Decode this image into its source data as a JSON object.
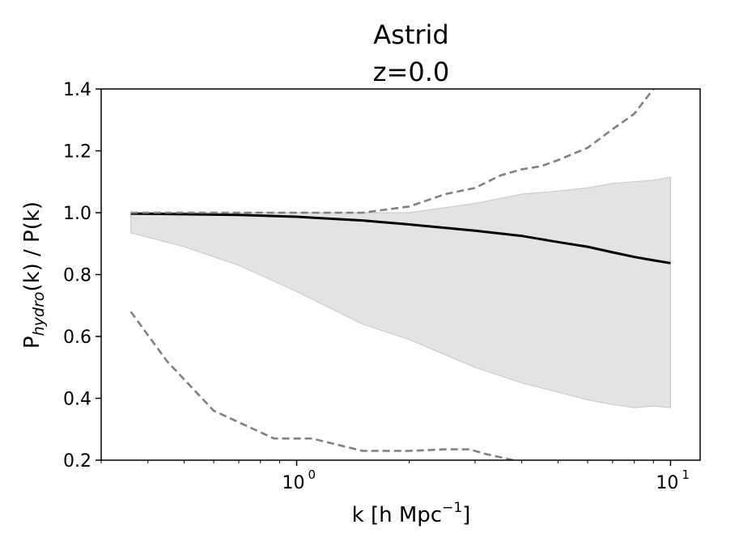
{
  "chart_data": {
    "type": "line",
    "title_line1": "Astrid",
    "title_line2": "z=0.0",
    "xlabel_main": "k [h Mpc",
    "xlabel_sup": "−1",
    "xlabel_close": "]",
    "ylabel_main": "P",
    "ylabel_sub": "hydro",
    "ylabel_rest": "(k) / P(k)",
    "xscale": "log",
    "xlim": [
      0.3,
      12
    ],
    "ylim": [
      0.2,
      1.4
    ],
    "grid": false,
    "y_ticks": [
      {
        "value": 0.2,
        "label": "0.2"
      },
      {
        "value": 0.4,
        "label": "0.4"
      },
      {
        "value": 0.6,
        "label": "0.6"
      },
      {
        "value": 0.8,
        "label": "0.8"
      },
      {
        "value": 1.0,
        "label": "1.0"
      },
      {
        "value": 1.2,
        "label": "1.2"
      },
      {
        "value": 1.4,
        "label": "1.4"
      }
    ],
    "x_ticks": [
      {
        "value": 1,
        "base": "10",
        "exp": "0"
      },
      {
        "value": 10,
        "base": "10",
        "exp": "1"
      }
    ],
    "colors": {
      "median": "#000000",
      "band_fill": "#e3e3e3",
      "band_edge": "#cccccc",
      "dashed": "#808080"
    },
    "series": [
      {
        "role": "median",
        "style": "solid",
        "x": [
          0.36,
          0.5,
          0.7,
          1.0,
          1.5,
          2.0,
          3.0,
          4.0,
          5.0,
          6.0,
          7.0,
          8.0,
          9.0,
          10.0
        ],
        "y": [
          0.997,
          0.995,
          0.993,
          0.987,
          0.975,
          0.962,
          0.942,
          0.925,
          0.905,
          0.89,
          0.872,
          0.857,
          0.846,
          0.837
        ]
      },
      {
        "role": "band",
        "style": "fill",
        "x": [
          0.36,
          0.5,
          0.7,
          1.0,
          1.5,
          2.0,
          3.0,
          4.0,
          5.0,
          6.0,
          7.0,
          8.0,
          9.0,
          10.0
        ],
        "y_low": [
          0.935,
          0.89,
          0.83,
          0.745,
          0.64,
          0.59,
          0.5,
          0.45,
          0.42,
          0.395,
          0.38,
          0.37,
          0.375,
          0.37
        ],
        "y_high": [
          1.0,
          1.0,
          1.0,
          1.0,
          1.0,
          1.0,
          1.03,
          1.06,
          1.07,
          1.08,
          1.095,
          1.1,
          1.105,
          1.115
        ]
      },
      {
        "role": "upper-dashed",
        "style": "dashed",
        "x": [
          0.36,
          0.6,
          1.0,
          1.5,
          2.0,
          2.5,
          3.0,
          3.5,
          4.0,
          4.5,
          5.0,
          6.0,
          7.0,
          8.0,
          9.0
        ],
        "y": [
          1.0,
          1.0,
          1.0,
          1.0,
          1.02,
          1.06,
          1.08,
          1.12,
          1.14,
          1.15,
          1.17,
          1.21,
          1.27,
          1.32,
          1.4
        ]
      },
      {
        "role": "lower-dashed",
        "style": "dashed",
        "x": [
          0.36,
          0.45,
          0.6,
          0.87,
          1.1,
          1.5,
          2.0,
          2.5,
          2.9,
          3.2,
          3.8
        ],
        "y": [
          0.68,
          0.52,
          0.36,
          0.27,
          0.27,
          0.23,
          0.23,
          0.235,
          0.235,
          0.22,
          0.2
        ]
      }
    ]
  }
}
